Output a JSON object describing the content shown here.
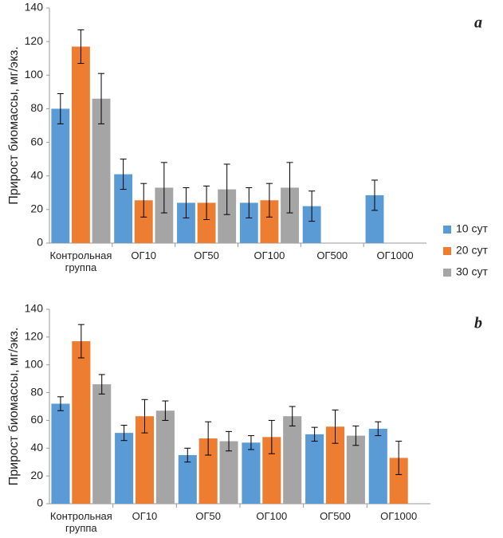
{
  "chart_data": [
    {
      "type": "bar",
      "label": "a",
      "ylabel": "Прирост биомассы, мг/экз.",
      "categories": [
        "Контрольная группа",
        "ОГ10",
        "ОГ50",
        "ОГ100",
        "ОГ500",
        "ОГ1000"
      ],
      "ylim": [
        0,
        140
      ],
      "yticks": [
        0,
        20,
        40,
        60,
        80,
        100,
        120,
        140
      ],
      "series": [
        {
          "name": "10 сут",
          "color": "#5b9bd5",
          "values": [
            80,
            41,
            24,
            24,
            22,
            28.5
          ],
          "errors": [
            9,
            9,
            9,
            9,
            9,
            9
          ]
        },
        {
          "name": "20 сут",
          "color": "#ed7d31",
          "values": [
            117,
            25.5,
            24,
            25.5,
            null,
            null
          ],
          "errors": [
            10,
            10,
            10,
            10,
            null,
            null
          ]
        },
        {
          "name": "30 сут",
          "color": "#a5a5a5",
          "values": [
            86,
            33,
            32,
            33,
            null,
            null
          ],
          "errors": [
            15,
            15,
            15,
            15,
            null,
            null
          ]
        }
      ]
    },
    {
      "type": "bar",
      "label": "b",
      "ylabel": "Прирост биомассы, мг/экз.",
      "categories": [
        "Контрольная группа",
        "ОГ10",
        "ОГ50",
        "ОГ100",
        "ОГ500",
        "ОГ1000"
      ],
      "ylim": [
        0,
        140
      ],
      "yticks": [
        0,
        20,
        40,
        60,
        80,
        100,
        120,
        140
      ],
      "series": [
        {
          "color": "#5b9bd5",
          "values": [
            72,
            51,
            35,
            44,
            50,
            54
          ],
          "errors": [
            5,
            5.5,
            5,
            5,
            5,
            5
          ]
        },
        {
          "color": "#ed7d31",
          "values": [
            117,
            63,
            47,
            48,
            55.5,
            33
          ],
          "errors": [
            12,
            12,
            12,
            12,
            12,
            12
          ]
        },
        {
          "color": "#a5a5a5",
          "values": [
            86,
            67,
            45,
            63,
            49,
            null
          ],
          "errors": [
            7,
            7,
            7,
            7,
            7,
            null
          ]
        }
      ]
    }
  ]
}
